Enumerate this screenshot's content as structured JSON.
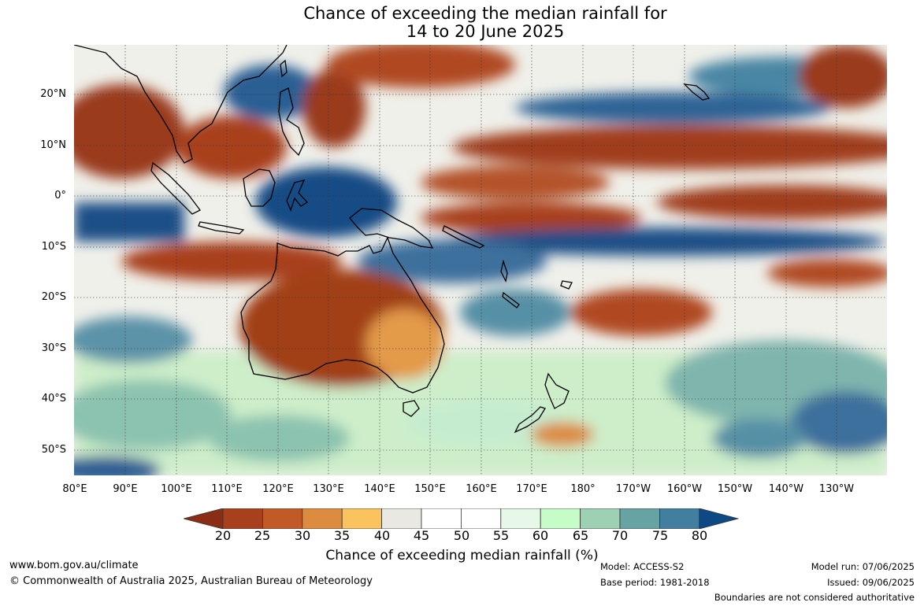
{
  "title": {
    "line1": "Chance of exceeding the median rainfall for",
    "line2": "14 to 20 June 2025"
  },
  "map": {
    "latitude_labels": [
      "20°N",
      "10°N",
      "0°",
      "10°S",
      "20°S",
      "30°S",
      "40°S",
      "50°S"
    ],
    "longitude_labels": [
      "80°E",
      "90°E",
      "100°E",
      "110°E",
      "120°E",
      "130°E",
      "140°E",
      "150°E",
      "160°E",
      "170°E",
      "180°",
      "170°W",
      "160°W",
      "150°W",
      "140°W",
      "130°W"
    ],
    "gridlines": true,
    "region": "Indo-Pacific and Australia"
  },
  "colorbar": {
    "ticks": [
      "20",
      "25",
      "30",
      "35",
      "40",
      "45",
      "50",
      "55",
      "60",
      "65",
      "70",
      "75",
      "80"
    ],
    "colors": [
      "#8b2c16",
      "#a8401e",
      "#c25a28",
      "#dc8b40",
      "#fbc35f",
      "#e9e8e3",
      "#ffffff",
      "#ffffff",
      "#e8f8e8",
      "#c6fcc8",
      "#9ed0b4",
      "#68a3a4",
      "#427ea0",
      "#0d4a85"
    ],
    "label": "Chance of exceeding median rainfall (%)"
  },
  "footer": {
    "website": "www.bom.gov.au/climate",
    "copyright": "© Commonwealth of Australia 2025, Australian Bureau of Meteorology",
    "model": "Model: ACCESS-S2",
    "base_period": "Base period: 1981-2018",
    "model_run": "Model run: 07/06/2025",
    "issued": "Issued: 09/06/2025",
    "disclaimer": "Boundaries are not considered authoritative"
  }
}
